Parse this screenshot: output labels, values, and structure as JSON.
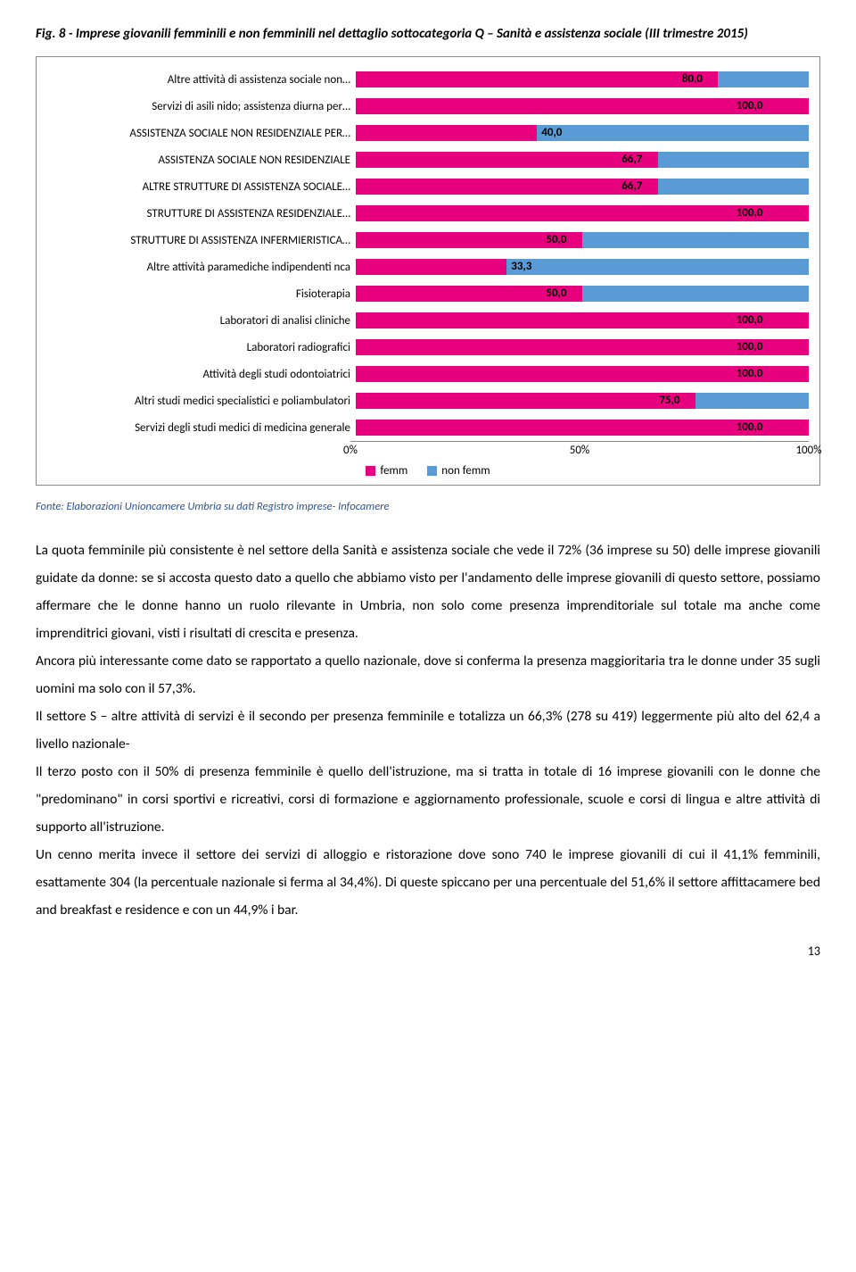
{
  "figure": {
    "title": "Fig. 8 - Imprese giovanili femminili e non femminili nel dettaglio sottocategoria Q – Sanità e assistenza sociale (III trimestre 2015)",
    "source": "Fonte: Elaborazioni Unioncamere Umbria su dati Registro imprese- Infocamere"
  },
  "chart": {
    "color_femm": "#e6007e",
    "color_nonfemm": "#5b9bd5",
    "rows": [
      {
        "label": "Altre attività di assistenza sociale non…",
        "femm": 80.0,
        "value_label": "80,0"
      },
      {
        "label": "Servizi di asili nido; assistenza diurna per…",
        "femm": 100.0,
        "value_label": "100,0"
      },
      {
        "label": "ASSISTENZA SOCIALE NON RESIDENZIALE PER…",
        "femm": 40.0,
        "value_label": "40,0"
      },
      {
        "label": "ASSISTENZA SOCIALE NON RESIDENZIALE",
        "femm": 66.7,
        "value_label": "66,7"
      },
      {
        "label": "ALTRE STRUTTURE DI ASSISTENZA SOCIALE…",
        "femm": 66.7,
        "value_label": "66,7"
      },
      {
        "label": "STRUTTURE DI ASSISTENZA RESIDENZIALE…",
        "femm": 100.0,
        "value_label": "100,0"
      },
      {
        "label": "STRUTTURE DI ASSISTENZA INFERMIERISTICA…",
        "femm": 50.0,
        "value_label": "50,0"
      },
      {
        "label": "Altre attività paramediche indipendenti nca",
        "femm": 33.3,
        "value_label": "33,3"
      },
      {
        "label": "Fisioterapia",
        "femm": 50.0,
        "value_label": "50,0"
      },
      {
        "label": "Laboratori di analisi cliniche",
        "femm": 100.0,
        "value_label": "100,0"
      },
      {
        "label": "Laboratori radiografici",
        "femm": 100.0,
        "value_label": "100,0"
      },
      {
        "label": "Attività degli studi odontoiatrici",
        "femm": 100.0,
        "value_label": "100,0"
      },
      {
        "label": "Altri studi medici specialistici e poliambulatori",
        "femm": 75.0,
        "value_label": "75,0"
      },
      {
        "label": "Servizi degli studi medici di medicina generale",
        "femm": 100.0,
        "value_label": "100,0"
      }
    ],
    "axis": {
      "ticks": [
        {
          "pos": 0,
          "label": "0%"
        },
        {
          "pos": 50,
          "label": "50%"
        },
        {
          "pos": 100,
          "label": "100%"
        }
      ]
    },
    "legend": {
      "femm": "femm",
      "nonfemm": "non femm"
    }
  },
  "body": {
    "p1": "La quota femminile più consistente è nel settore della Sanità e assistenza sociale che vede il 72% (36 imprese su 50) delle imprese giovanili guidate da donne: se si accosta questo dato a quello che abbiamo visto per l'andamento delle imprese giovanili di questo settore, possiamo affermare che le donne hanno un ruolo rilevante in Umbria, non solo come presenza imprenditoriale sul totale ma anche come imprenditrici giovani, visti i risultati di crescita e presenza.",
    "p2": "Ancora più interessante come dato se rapportato a quello nazionale, dove si conferma la presenza maggioritaria tra le donne under 35 sugli uomini ma solo con il 57,3%.",
    "p3": "Il settore S – altre attività di servizi è il secondo per presenza femminile e totalizza un 66,3% (278 su 419) leggermente più alto del 62,4 a livello nazionale-",
    "p4": "Il terzo posto con il 50% di presenza femminile è quello dell'istruzione, ma si tratta in totale di 16 imprese giovanili con le donne che \"predominano\" in corsi sportivi e ricreativi, corsi di formazione e aggiornamento professionale, scuole e corsi di lingua e altre attività di supporto all'istruzione.",
    "p5": "Un cenno merita invece il settore dei servizi di alloggio e ristorazione dove sono 740 le imprese giovanili di cui il 41,1% femminili, esattamente 304 (la percentuale nazionale si ferma al 34,4%). Di queste spiccano per una percentuale del 51,6% il settore affittacamere bed and breakfast e residence e con un 44,9% i bar."
  },
  "page_number": "13"
}
